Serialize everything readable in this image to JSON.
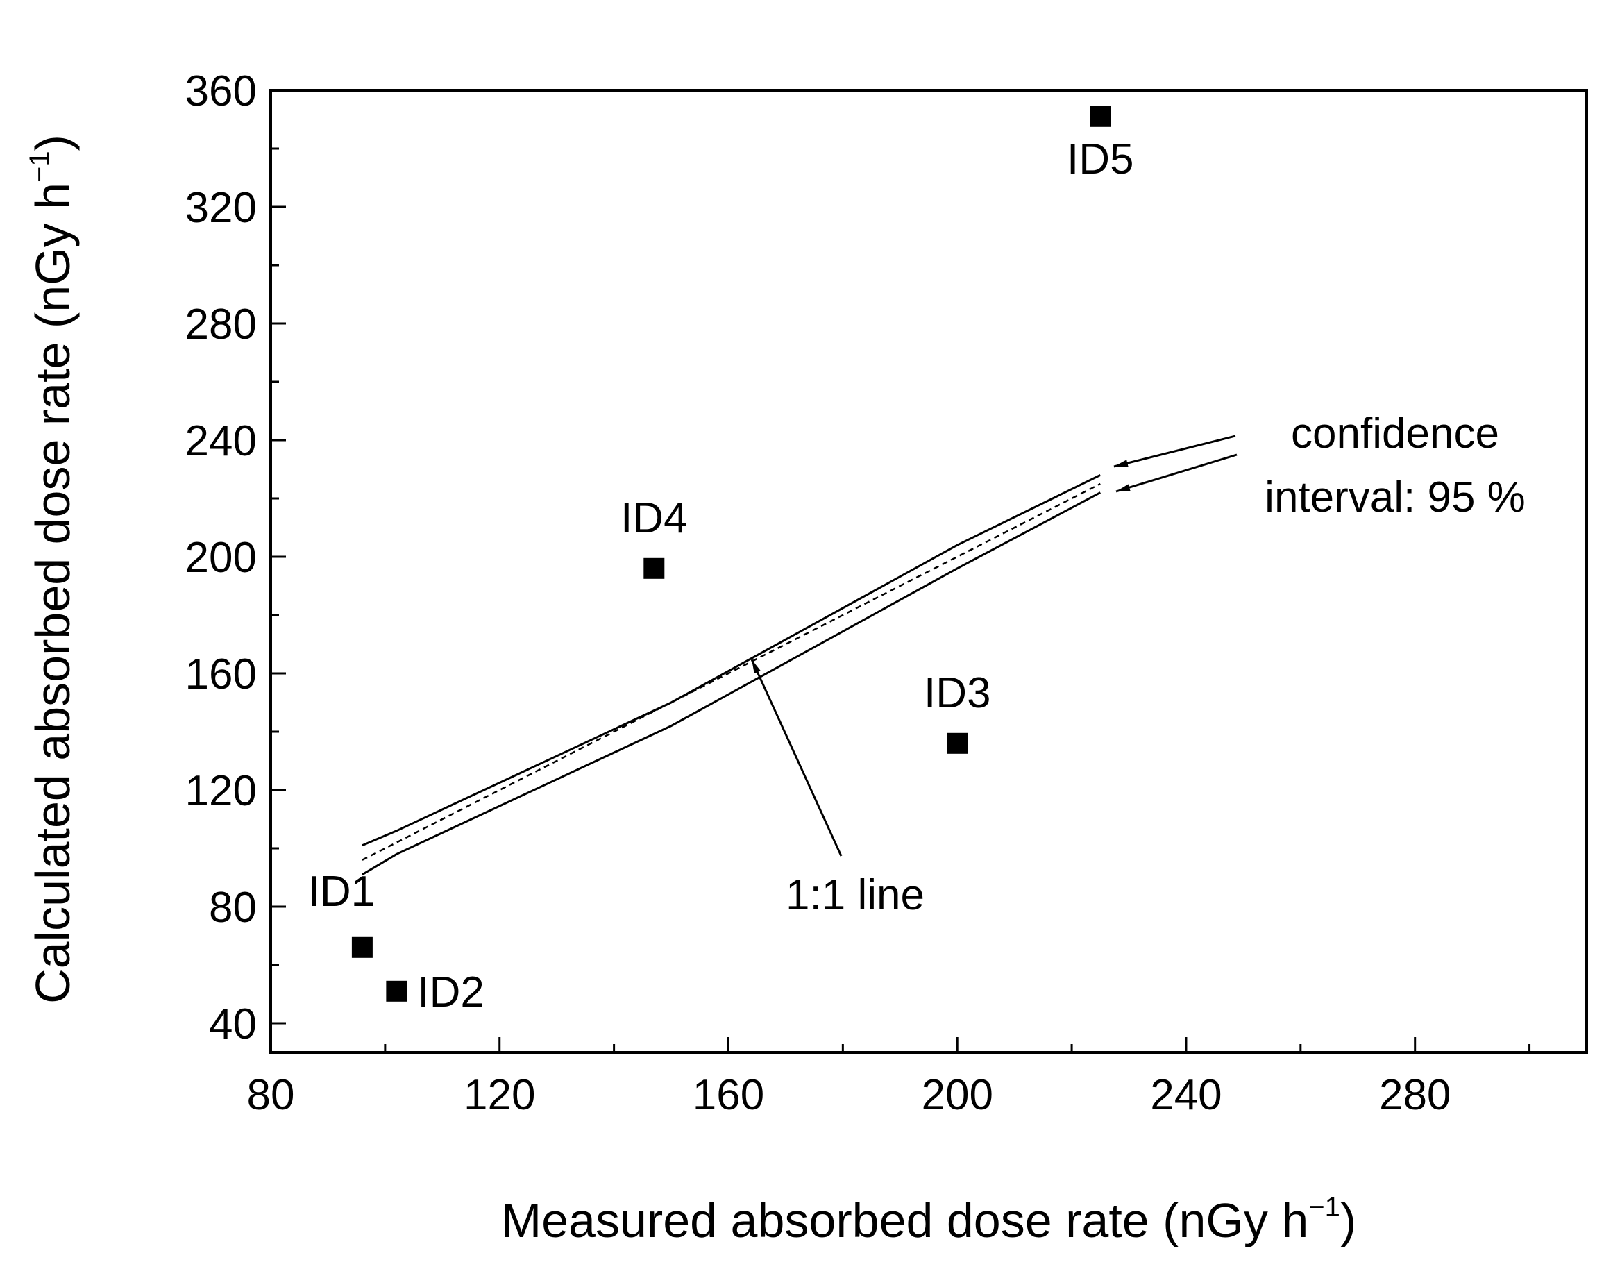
{
  "chart_data": {
    "type": "scatter",
    "title": "",
    "xlabel": "Measured absorbed dose rate (nGy h",
    "ylabel": "Calculated absorbed dose rate (nGy h",
    "unit_superscript": "−1",
    "unit_close": ")",
    "xlim": [
      80,
      310
    ],
    "ylim": [
      30,
      360
    ],
    "xticks": [
      "80",
      "120",
      "160",
      "200",
      "240",
      "280"
    ],
    "yticks": [
      "40",
      "80",
      "120",
      "160",
      "200",
      "240",
      "280",
      "320",
      "360"
    ],
    "grid": false,
    "points": [
      {
        "label": "ID1",
        "x": 96,
        "y": 66
      },
      {
        "label": "ID2",
        "x": 102,
        "y": 51
      },
      {
        "label": "ID3",
        "x": 200,
        "y": 136
      },
      {
        "label": "ID4",
        "x": 147,
        "y": 196
      },
      {
        "label": "ID5",
        "x": 225,
        "y": 351
      }
    ],
    "reference_line": {
      "name": "1:1 line",
      "x": [
        96,
        225
      ],
      "y": [
        96,
        225
      ]
    },
    "confidence_band": {
      "name": "confidence interval: 95 %",
      "upper": {
        "x": [
          96,
          102,
          150,
          200,
          225
        ],
        "y": [
          101,
          106,
          150,
          204,
          228
        ]
      },
      "lower": {
        "x": [
          96,
          102,
          150,
          200,
          225
        ],
        "y": [
          91,
          98,
          142,
          196,
          222
        ]
      }
    },
    "annotations": {
      "line_label": "1:1 line",
      "ci_line1": "confidence",
      "ci_line2": "interval: 95 %"
    }
  }
}
